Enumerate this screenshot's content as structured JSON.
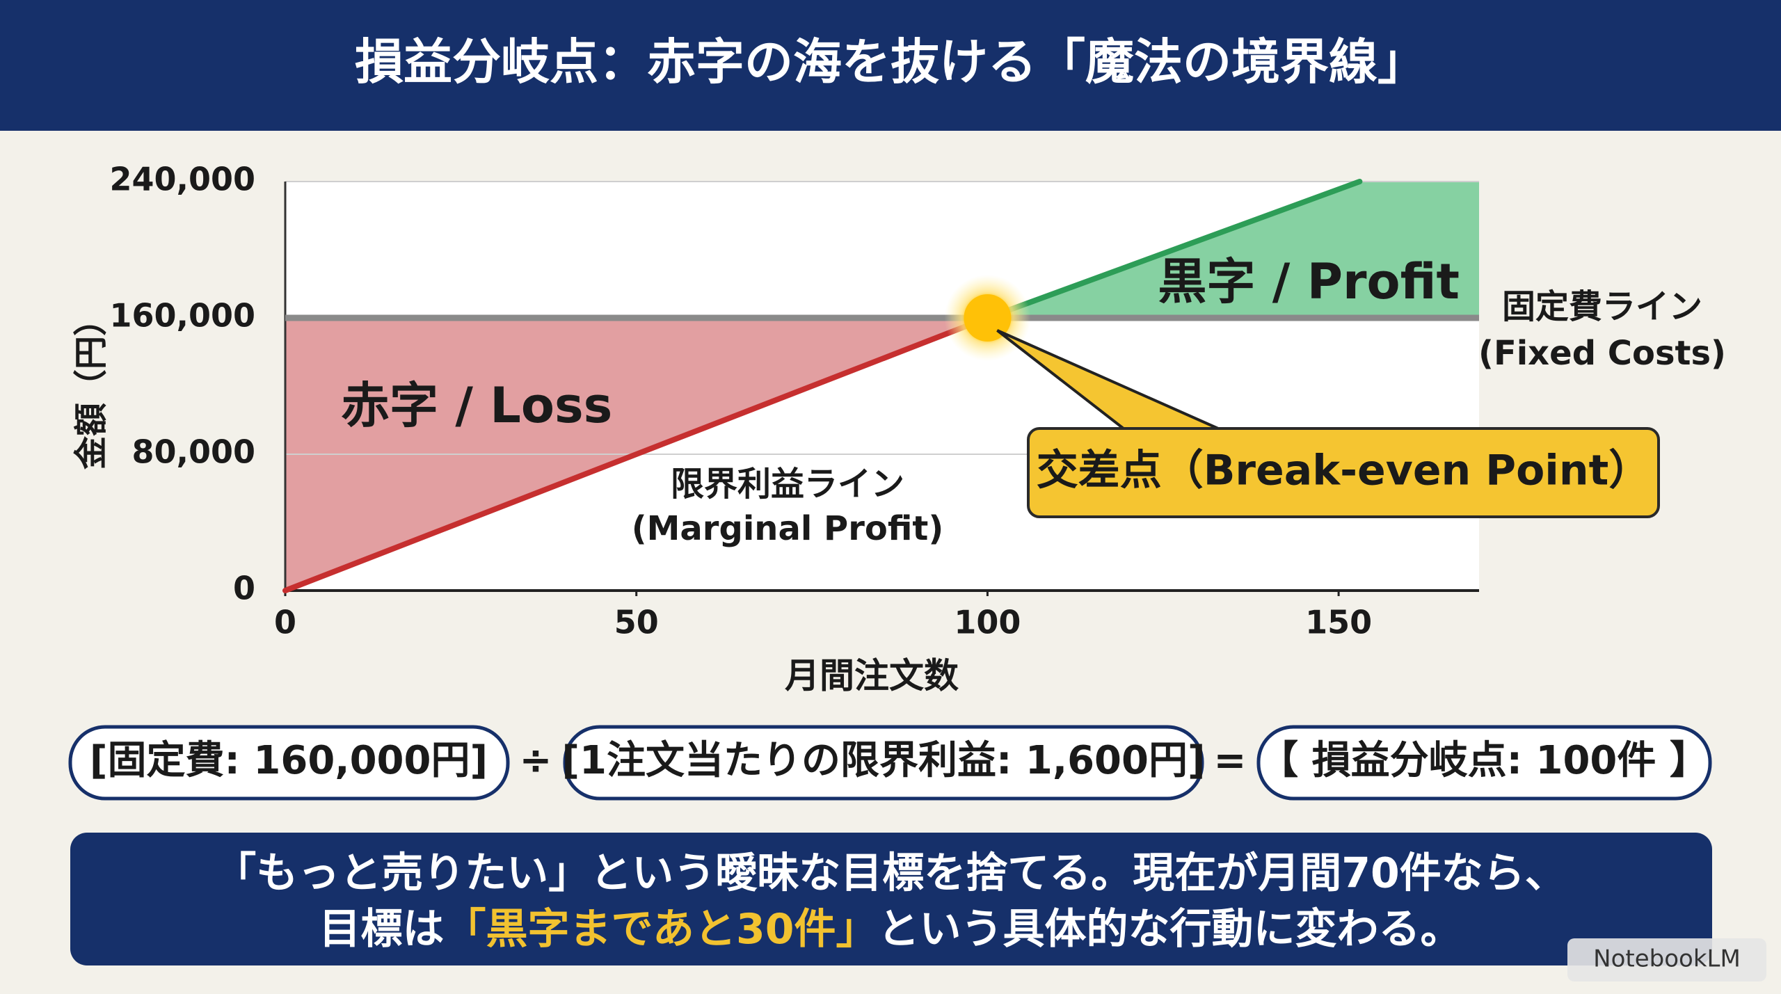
{
  "header": {
    "title": "損益分岐点：赤字の海を抜ける「魔法の境界線」"
  },
  "chart_data": {
    "type": "line",
    "x_label": "月間注文数",
    "y_label": "金額（円）",
    "xlim": [
      0,
      170
    ],
    "ylim": [
      0,
      240000
    ],
    "xticks": [
      0,
      50,
      100,
      150
    ],
    "yticks": [
      {
        "value": 0,
        "label": "0"
      },
      {
        "value": 80000,
        "label": "80,000"
      },
      {
        "value": 160000,
        "label": "160,000"
      },
      {
        "value": 240000,
        "label": "240,000"
      }
    ],
    "grid": true,
    "series": [
      {
        "name": "固定費ライン",
        "name_en": "(Fixed Costs)",
        "color": "#8a8a8a",
        "x": [
          0,
          170
        ],
        "values": [
          160000,
          160000
        ]
      },
      {
        "name": "限界利益ライン",
        "name_en": "(Marginal Profit)",
        "colors": [
          "#c62f2f",
          "#2d9d57"
        ],
        "x": [
          0,
          100,
          153
        ],
        "values": [
          0,
          160000,
          240000
        ]
      }
    ],
    "break_even": {
      "x": 100,
      "y": 160000,
      "label": "交差点（Break-even Point）"
    },
    "loss_label": "赤字 / Loss",
    "loss_color": "#e09a9c",
    "profit_label": "黒字 / Profit",
    "profit_color": "#7fcf9d"
  },
  "formula": {
    "fixed": "[固定費: 160,000円]",
    "divide": "÷",
    "margin": "[1注文当たりの限界利益: 1,600円]",
    "equals": "=",
    "result": "【 損益分岐点: 100件 】"
  },
  "footer": {
    "line1": "「もっと売りたい」という曖昧な目標を捨てる。現在が月間70件なら、",
    "line2_a": "目標は",
    "line2_highlight": "「黒字まであと30件」",
    "line2_b": "という具体的な行動に変わる。"
  },
  "badge": "NotebookLM"
}
